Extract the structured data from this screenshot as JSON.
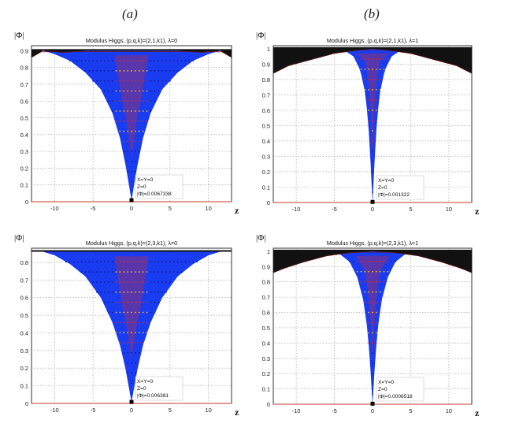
{
  "panel_labels": [
    "(a)",
    "(b)"
  ],
  "chart_data": [
    {
      "type": "scatter",
      "title": "Modulus Higgs,  (p,q,k)=(2,1,k1), λ=0",
      "ylabel": "|Φ|",
      "xlabel": "z",
      "xlim": [
        -13,
        13
      ],
      "ylim": [
        0,
        0.93
      ],
      "xticks": [
        -10,
        -5,
        0,
        5,
        10
      ],
      "xtick_labels": [
        "-10",
        "-5",
        "0",
        "5",
        "10"
      ],
      "yticks": [
        0,
        0.1,
        0.2,
        0.3,
        0.4,
        0.5,
        0.6,
        0.7,
        0.8,
        0.9
      ],
      "ytick_labels": [
        "0",
        "0.1",
        "0.2",
        "0.3",
        "0.4",
        "0.5",
        "0.6",
        "0.7",
        "0.8",
        "0.9"
      ],
      "grid": true,
      "cap_value": 0.9,
      "min_value": 0.0067338,
      "datatip": [
        "X=Y=0",
        "Z=0",
        "|Φ|=0.0067338"
      ],
      "profile": [
        {
          "z": 0,
          "v": 0.0067338
        },
        {
          "z": 0.3,
          "v": 0.09
        },
        {
          "z": 0.7,
          "v": 0.2
        },
        {
          "z": 1.5,
          "v": 0.38
        },
        {
          "z": 2.5,
          "v": 0.53
        },
        {
          "z": 4,
          "v": 0.67
        },
        {
          "z": 6,
          "v": 0.77
        },
        {
          "z": 8,
          "v": 0.84
        },
        {
          "z": 10,
          "v": 0.88
        },
        {
          "z": 11.5,
          "v": 0.9
        }
      ],
      "outer_edge": [
        {
          "z": 0,
          "v": 0.9
        },
        {
          "z": 6,
          "v": 0.9
        },
        {
          "z": 9,
          "v": 0.89
        },
        {
          "z": 11.5,
          "v": 0.9
        },
        {
          "z": 13,
          "v": 0.86
        }
      ],
      "colors": {
        "surface": "#1a3cf0",
        "inner_hot": "#d42a2a",
        "inner_warm": "#e8c020",
        "cap": "#111111",
        "axis": "#c0392b"
      }
    },
    {
      "type": "scatter",
      "title": "Modulus Higgs,  (p,q,k)=(2,1,k1), λ=1",
      "ylabel": "|Φ|",
      "xlabel": "z",
      "xlim": [
        -13,
        13
      ],
      "ylim": [
        0,
        1.02
      ],
      "xticks": [
        -10,
        -5,
        0,
        5,
        10
      ],
      "xtick_labels": [
        "-10",
        "-5",
        "0",
        "5",
        "10"
      ],
      "yticks": [
        0,
        0.1,
        0.2,
        0.3,
        0.4,
        0.5,
        0.6,
        0.7,
        0.8,
        0.9,
        1
      ],
      "ytick_labels": [
        "0",
        "0.1",
        "0.2",
        "0.3",
        "0.4",
        "0.5",
        "0.6",
        "0.7",
        "0.8",
        "0.9",
        "1"
      ],
      "grid": true,
      "cap_value": 1.0,
      "min_value": 0.001322,
      "datatip": [
        "X=Y=0",
        "Z=0",
        "|Φ|=0.001322"
      ],
      "profile": [
        {
          "z": 0,
          "v": 0.001322
        },
        {
          "z": 0.15,
          "v": 0.15
        },
        {
          "z": 0.35,
          "v": 0.35
        },
        {
          "z": 0.6,
          "v": 0.55
        },
        {
          "z": 1,
          "v": 0.72
        },
        {
          "z": 1.6,
          "v": 0.86
        },
        {
          "z": 2.5,
          "v": 0.95
        },
        {
          "z": 4,
          "v": 1.0
        }
      ],
      "outer_edge": [
        {
          "z": 0,
          "v": 1.0
        },
        {
          "z": 2,
          "v": 0.99
        },
        {
          "z": 5,
          "v": 0.97
        },
        {
          "z": 8,
          "v": 0.93
        },
        {
          "z": 11,
          "v": 0.89
        },
        {
          "z": 13,
          "v": 0.84
        }
      ],
      "colors": {
        "surface": "#1a3cf0",
        "inner_hot": "#d42a2a",
        "inner_warm": "#e8c020",
        "cap": "#111111",
        "axis": "#c0392b"
      }
    },
    {
      "type": "scatter",
      "title": "Modulus Higgs,  (p,q,k)=(2,3,k1), λ=0",
      "ylabel": "|Φ|",
      "xlabel": "z",
      "xlim": [
        -13,
        13
      ],
      "ylim": [
        0,
        0.88
      ],
      "xticks": [
        -10,
        -5,
        0,
        5,
        10
      ],
      "xtick_labels": [
        "-10",
        "-5",
        "0",
        "5",
        "10"
      ],
      "yticks": [
        0,
        0.1,
        0.2,
        0.3,
        0.4,
        0.5,
        0.6,
        0.7,
        0.8
      ],
      "ytick_labels": [
        "0",
        "0.1",
        "0.2",
        "0.3",
        "0.4",
        "0.5",
        "0.6",
        "0.7",
        "0.8"
      ],
      "grid": true,
      "cap_value": 0.86,
      "min_value": 0.006381,
      "datatip": [
        "X=Y=0",
        "Z=0",
        "|Φ|=0.006381"
      ],
      "profile": [
        {
          "z": 0,
          "v": 0.006381
        },
        {
          "z": 0.3,
          "v": 0.08
        },
        {
          "z": 0.8,
          "v": 0.2
        },
        {
          "z": 1.5,
          "v": 0.33
        },
        {
          "z": 2.5,
          "v": 0.46
        },
        {
          "z": 4,
          "v": 0.6
        },
        {
          "z": 6,
          "v": 0.72
        },
        {
          "z": 8,
          "v": 0.79
        },
        {
          "z": 10,
          "v": 0.84
        },
        {
          "z": 11.5,
          "v": 0.86
        }
      ],
      "outer_edge": [
        {
          "z": 0,
          "v": 0.86
        },
        {
          "z": 9,
          "v": 0.86
        },
        {
          "z": 13,
          "v": 0.86
        }
      ],
      "colors": {
        "surface": "#1a3cf0",
        "inner_hot": "#d42a2a",
        "inner_warm": "#e8c020",
        "cap": "#111111",
        "axis": "#c0392b"
      }
    },
    {
      "type": "scatter",
      "title": "Modulus Higgs,  (p,q,k)=(2,3,k1), λ=1",
      "ylabel": "|Φ|",
      "xlabel": "z",
      "xlim": [
        -13,
        13
      ],
      "ylim": [
        0,
        1.02
      ],
      "xticks": [
        -10,
        -5,
        0,
        5,
        10
      ],
      "xtick_labels": [
        "-10",
        "-5",
        "0",
        "5",
        "10"
      ],
      "yticks": [
        0,
        0.1,
        0.2,
        0.3,
        0.4,
        0.5,
        0.6,
        0.7,
        0.8,
        0.9,
        1
      ],
      "ytick_labels": [
        "0",
        "0.1",
        "0.2",
        "0.3",
        "0.4",
        "0.5",
        "0.6",
        "0.7",
        "0.8",
        "0.9",
        "1"
      ],
      "grid": true,
      "cap_value": 1.0,
      "min_value": 0.0006518,
      "datatip": [
        "X=Y=0",
        "Z=0",
        "|Φ|=0.0006518"
      ],
      "profile": [
        {
          "z": 0,
          "v": 0.0006518
        },
        {
          "z": 0.15,
          "v": 0.12
        },
        {
          "z": 0.35,
          "v": 0.3
        },
        {
          "z": 0.7,
          "v": 0.5
        },
        {
          "z": 1.2,
          "v": 0.68
        },
        {
          "z": 2,
          "v": 0.83
        },
        {
          "z": 3,
          "v": 0.93
        },
        {
          "z": 4.5,
          "v": 0.99
        },
        {
          "z": 6,
          "v": 1.0
        }
      ],
      "outer_edge": [
        {
          "z": 0,
          "v": 1.0
        },
        {
          "z": 3,
          "v": 0.99
        },
        {
          "z": 6,
          "v": 0.97
        },
        {
          "z": 9,
          "v": 0.93
        },
        {
          "z": 11.5,
          "v": 0.89
        },
        {
          "z": 13,
          "v": 0.86
        }
      ],
      "colors": {
        "surface": "#1a3cf0",
        "inner_hot": "#d42a2a",
        "inner_warm": "#e8c020",
        "cap": "#111111",
        "axis": "#c0392b"
      }
    }
  ]
}
